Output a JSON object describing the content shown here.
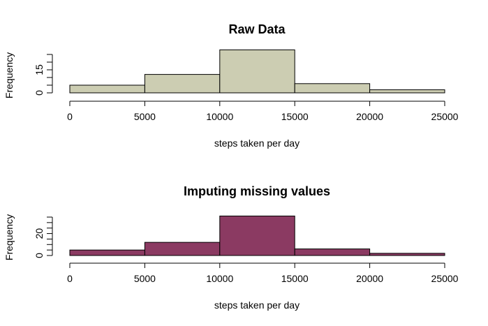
{
  "chart_data": [
    {
      "type": "bar",
      "title": "Raw Data",
      "xlabel": "steps taken per day",
      "ylabel": "Frequency",
      "bins": [
        [
          0,
          5000
        ],
        [
          5000,
          10000
        ],
        [
          10000,
          15000
        ],
        [
          15000,
          20000
        ],
        [
          20000,
          25000
        ]
      ],
      "values": [
        5,
        12,
        28,
        6,
        2
      ],
      "xlim": [
        0,
        25000
      ],
      "ylim": [
        0,
        25
      ],
      "x_ticks": [
        "0",
        "5000",
        "10000",
        "15000",
        "20000",
        "25000"
      ],
      "y_ticks": [
        "0",
        "15"
      ],
      "color": "#cccdb2",
      "grid": false
    },
    {
      "type": "bar",
      "title": "Imputing missing values",
      "xlabel": "steps taken per day",
      "ylabel": "Frequency",
      "bins": [
        [
          0,
          5000
        ],
        [
          5000,
          10000
        ],
        [
          10000,
          15000
        ],
        [
          15000,
          20000
        ],
        [
          20000,
          25000
        ]
      ],
      "values": [
        5,
        12,
        36,
        6,
        2
      ],
      "xlim": [
        0,
        25000
      ],
      "ylim": [
        0,
        35
      ],
      "x_ticks": [
        "0",
        "5000",
        "10000",
        "15000",
        "20000",
        "25000"
      ],
      "y_ticks": [
        "0",
        "20"
      ],
      "color": "#8b3a62",
      "grid": false
    }
  ]
}
